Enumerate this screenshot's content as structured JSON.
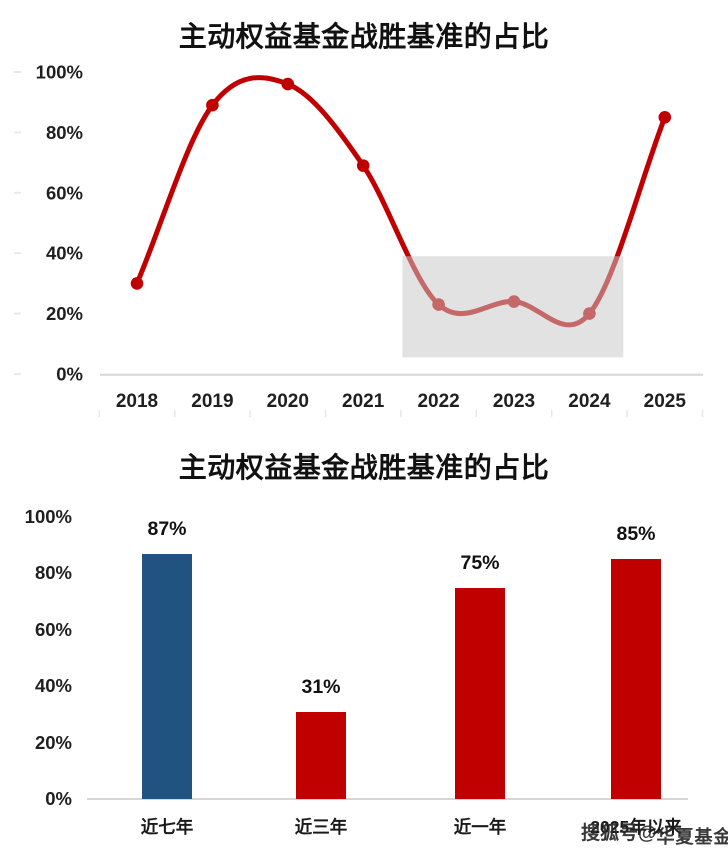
{
  "watermark": {
    "text": "搜狐号@华夏基金",
    "prefix": "搜狐号@",
    "suffix": "华夏基金"
  },
  "colors": {
    "red": "#c00000",
    "blue": "#205380",
    "axis": "#d6d6d6",
    "highlight_gray": "#c8c8c8",
    "label_dark": "#1f1f1f"
  },
  "chart_data": [
    {
      "type": "line",
      "title": "主动权益基金战胜基准的占比",
      "x": [
        "2018",
        "2019",
        "2020",
        "2021",
        "2022",
        "2023",
        "2024",
        "2025"
      ],
      "values": [
        30,
        89,
        96,
        69,
        23,
        24,
        20,
        85
      ],
      "ylim": [
        0,
        100
      ],
      "ytick_values": [
        100,
        80,
        60,
        40,
        20,
        0
      ],
      "ytick_labels": [
        "100%",
        "80%",
        "60%",
        "40%",
        "20%",
        "0%"
      ],
      "line_color": "#c00000",
      "marker_color": "#c00000",
      "smooth": true,
      "grid": false,
      "legend": null,
      "highlight_box": {
        "x_start_year": 2021.52,
        "x_end_year": 2024.45,
        "y_top_pct": 39,
        "y_bottom_pct": 5.5,
        "fill": "#c8c8c8",
        "opacity": 0.52,
        "note": "gray band over 2022-2024 underperformance period"
      }
    },
    {
      "type": "bar",
      "title": "主动权益基金战胜基准的占比",
      "categories": [
        "近七年",
        "近三年",
        "近一年",
        "2025年以来"
      ],
      "values": [
        87,
        31,
        75,
        85
      ],
      "value_labels": [
        "87%",
        "31%",
        "75%",
        "85%"
      ],
      "bar_colors": [
        "#205380",
        "#c00000",
        "#c00000",
        "#c00000"
      ],
      "ylim": [
        0,
        100
      ],
      "ytick_values": [
        100,
        80,
        60,
        40,
        20,
        0
      ],
      "ytick_labels": [
        "100%",
        "80%",
        "60%",
        "40%",
        "20%",
        "0%"
      ],
      "grid": false,
      "legend": null
    }
  ]
}
